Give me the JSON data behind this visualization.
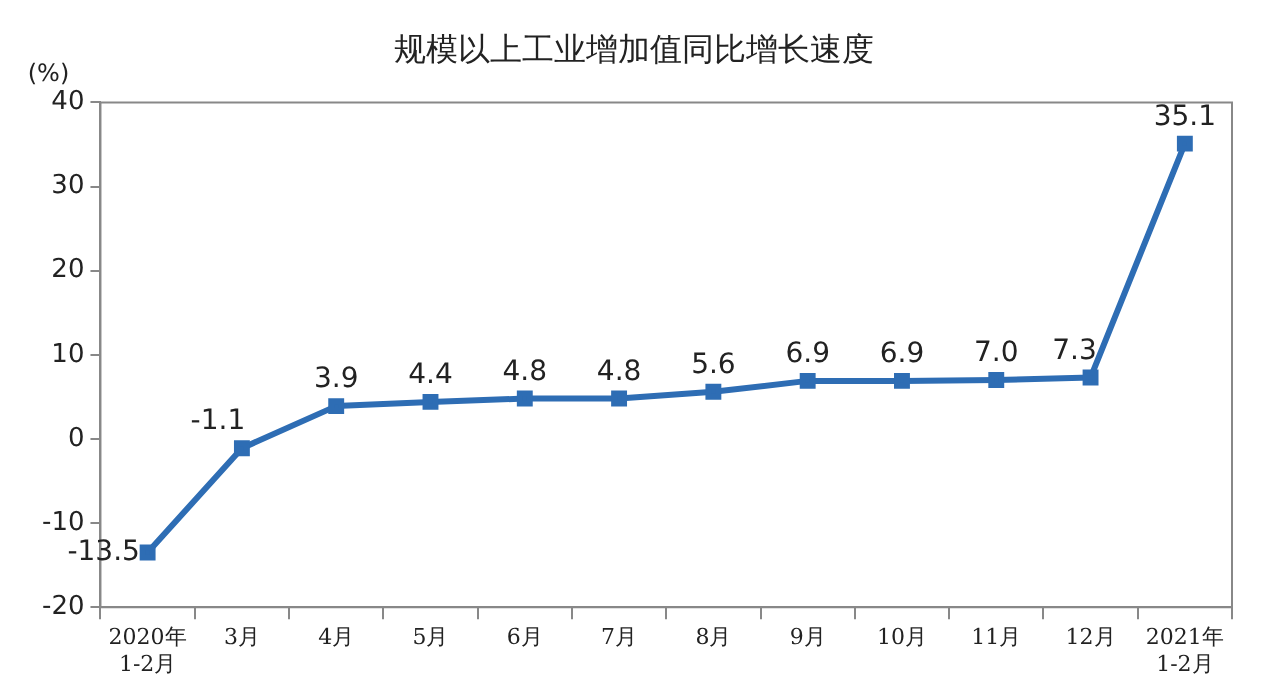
{
  "chart_data": {
    "type": "line",
    "title": "规模以上工业增加值同比增长速度",
    "ylabel": "(%)",
    "categories": [
      "2020年\n1-2月",
      "3月",
      "4月",
      "5月",
      "6月",
      "7月",
      "8月",
      "9月",
      "10月",
      "11月",
      "12月",
      "2021年\n1-2月"
    ],
    "values": [
      -13.5,
      -1.1,
      3.9,
      4.4,
      4.8,
      4.8,
      5.6,
      6.9,
      6.9,
      7.0,
      7.3,
      35.1
    ],
    "value_labels": [
      "-13.5",
      "-1.1",
      "3.9",
      "4.4",
      "4.8",
      "4.8",
      "5.6",
      "6.9",
      "6.9",
      "7.0",
      "7.3",
      "35.1"
    ],
    "color": "#2e6db4",
    "marker": "square",
    "line_style": "solid",
    "ylim": [
      -20,
      40
    ],
    "yticks": [
      -20,
      -10,
      0,
      10,
      20,
      30,
      40
    ],
    "grid": false,
    "legend": false
  }
}
